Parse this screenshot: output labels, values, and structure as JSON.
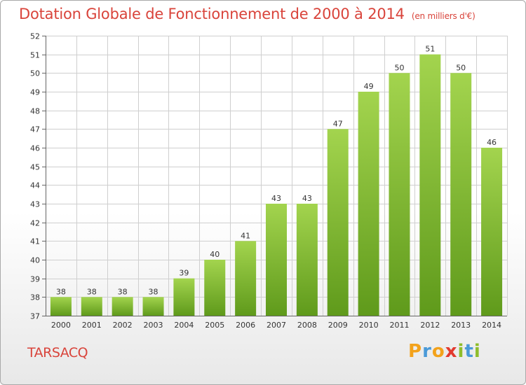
{
  "title": "Dotation Globale de Fonctionnement de 2000 à 2014",
  "subtitle": "(en milliers d'€)",
  "commune": "TARSACQ",
  "logo": {
    "letters": [
      "P",
      "r",
      "o",
      "x",
      "i",
      "t",
      "i"
    ],
    "colors": [
      "#f3a21b",
      "#4a9ad8",
      "#f3a21b",
      "#e23a2f",
      "#8fbd2b",
      "#4a9ad8",
      "#8fbd2b"
    ]
  },
  "colors": {
    "bar_light": "#a3d44e",
    "bar_dark": "#5f9a1b",
    "title": "#d9443b",
    "grid": "#cfcfcf"
  },
  "chart_data": {
    "type": "bar",
    "title": "Dotation Globale de Fonctionnement de 2000 à 2014",
    "categories": [
      "2000",
      "2001",
      "2002",
      "2003",
      "2004",
      "2005",
      "2006",
      "2007",
      "2008",
      "2009",
      "2010",
      "2011",
      "2012",
      "2013",
      "2014"
    ],
    "values": [
      38,
      38,
      38,
      38,
      39,
      40,
      41,
      43,
      43,
      47,
      49,
      50,
      51,
      50,
      46
    ],
    "data_labels": [
      "38",
      "38",
      "38",
      "38",
      "39",
      "40",
      "41",
      "43",
      "43",
      "47",
      "49",
      "50",
      "51",
      "50",
      "46"
    ],
    "y_ticks": [
      "37",
      "38",
      "39",
      "40",
      "41",
      "42",
      "43",
      "44",
      "45",
      "46",
      "47",
      "48",
      "49",
      "50",
      "51",
      "52"
    ],
    "ylim": [
      37,
      52
    ],
    "xlabel": "",
    "ylabel": "",
    "grid": true
  }
}
